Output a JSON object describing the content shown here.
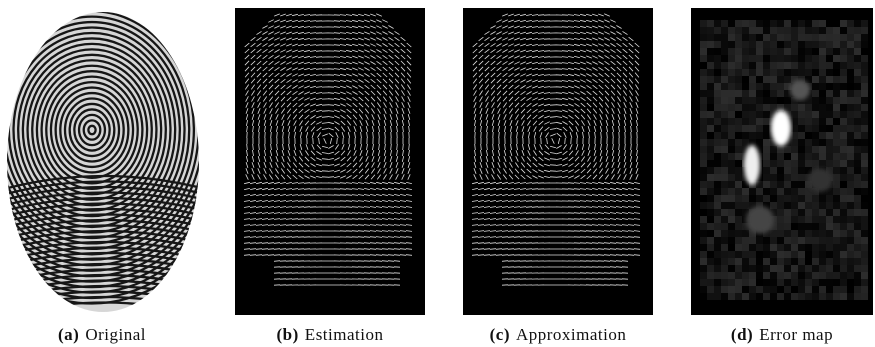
{
  "panels": [
    {
      "label": "(a)",
      "caption": "Original"
    },
    {
      "label": "(b)",
      "caption": "Estimation"
    },
    {
      "label": "(c)",
      "caption": "Approximation"
    },
    {
      "label": "(d)",
      "caption": "Error map"
    }
  ]
}
